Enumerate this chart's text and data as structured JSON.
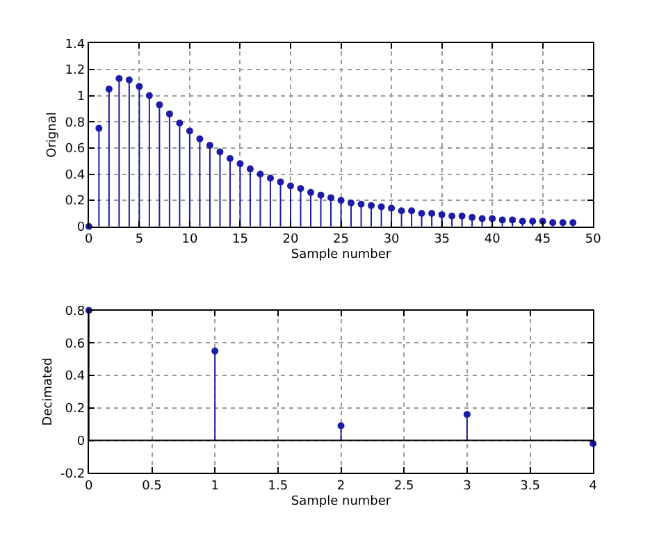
{
  "chart_data": [
    {
      "type": "lollipop",
      "xlabel": "Sample number",
      "ylabel": "Orignal",
      "x": [
        0,
        1,
        2,
        3,
        4,
        5,
        6,
        7,
        8,
        9,
        10,
        11,
        12,
        13,
        14,
        15,
        16,
        17,
        18,
        19,
        20,
        21,
        22,
        23,
        24,
        25,
        26,
        27,
        28,
        29,
        30,
        31,
        32,
        33,
        34,
        35,
        36,
        37,
        38,
        39,
        40,
        41,
        42,
        43,
        44,
        45,
        46,
        47,
        48
      ],
      "series": [
        {
          "color": "#1c1ca8",
          "values": [
            0,
            0.75,
            1.05,
            1.13,
            1.12,
            1.07,
            1.0,
            0.93,
            0.86,
            0.79,
            0.73,
            0.67,
            0.62,
            0.57,
            0.52,
            0.48,
            0.44,
            0.4,
            0.37,
            0.34,
            0.31,
            0.29,
            0.26,
            0.24,
            0.22,
            0.2,
            0.18,
            0.17,
            0.16,
            0.15,
            0.14,
            0.12,
            0.12,
            0.1,
            0.1,
            0.09,
            0.08,
            0.08,
            0.07,
            0.06,
            0.06,
            0.05,
            0.05,
            0.04,
            0.04,
            0.04,
            0.03,
            0.03,
            0.03
          ]
        }
      ],
      "xlim": [
        0,
        50
      ],
      "xticks": [
        0,
        5,
        10,
        15,
        20,
        25,
        30,
        35,
        40,
        45,
        50
      ],
      "ylim": [
        0,
        1.4
      ],
      "yticks": [
        0,
        0.2,
        0.4,
        0.6,
        0.8,
        1,
        1.2,
        1.4
      ],
      "grid": true,
      "marker": "circle"
    },
    {
      "type": "lollipop",
      "xlabel": "Sample number",
      "ylabel": "Decimated",
      "x": [
        0,
        1,
        2,
        3,
        4
      ],
      "series": [
        {
          "color": "#1c1ca8",
          "values": [
            0.8,
            0.55,
            0.09,
            0.16,
            -0.02
          ]
        }
      ],
      "xlim": [
        0,
        4
      ],
      "xticks": [
        0,
        0.5,
        1,
        1.5,
        2,
        2.5,
        3,
        3.5,
        4
      ],
      "ylim": [
        -0.2,
        0.8
      ],
      "yticks": [
        -0.2,
        0,
        0.2,
        0.4,
        0.6,
        0.8
      ],
      "ref_lines": [
        {
          "axis": "y",
          "value": 0,
          "color": "#000000"
        }
      ],
      "grid": true,
      "marker": "circle"
    }
  ]
}
